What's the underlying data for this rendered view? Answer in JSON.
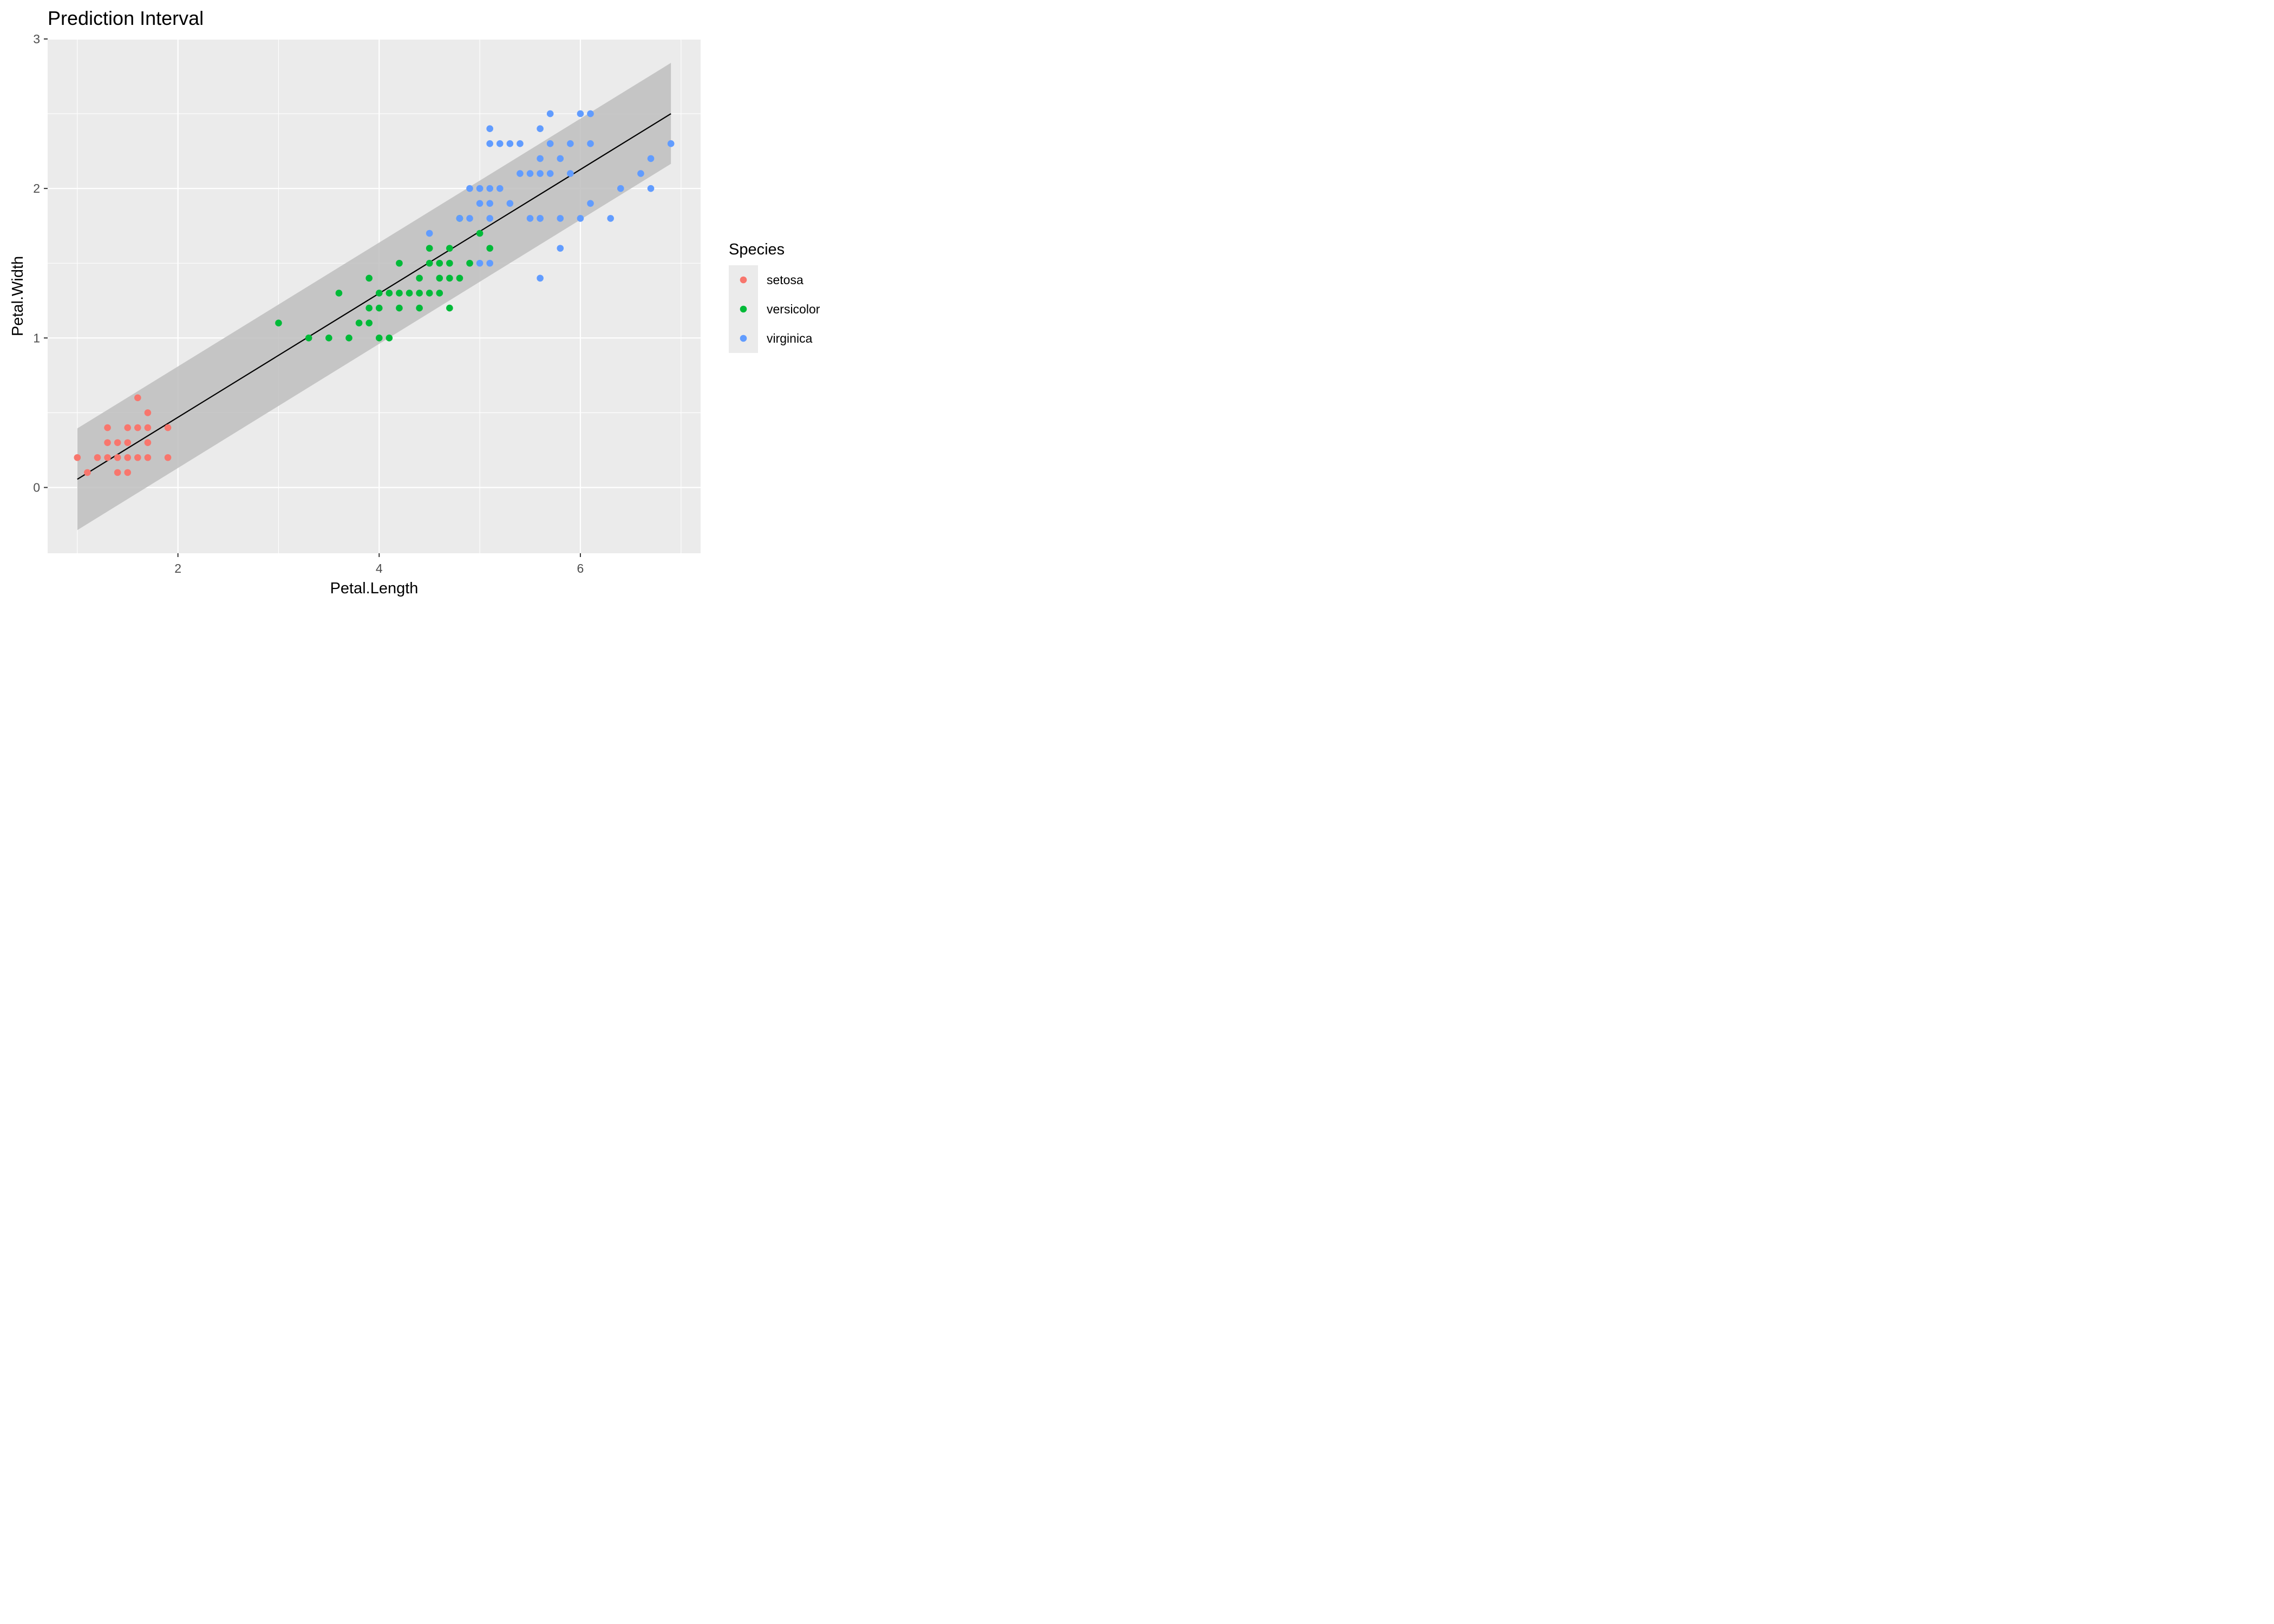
{
  "chart_data": {
    "type": "scatter",
    "title": "Prediction Interval",
    "xlabel": "Petal.Length",
    "ylabel": "Petal.Width",
    "xlim": [
      0.705,
      7.195
    ],
    "ylim": [
      -0.44,
      3.0
    ],
    "x_ticks": [
      2,
      4,
      6
    ],
    "y_ticks": [
      0,
      1,
      2,
      3
    ],
    "grid": true,
    "legend": {
      "title": "Species",
      "position": "right",
      "entries": [
        "setosa",
        "versicolor",
        "virginica"
      ]
    },
    "colors": {
      "setosa": "#F8766D",
      "versicolor": "#00BA38",
      "virginica": "#619CFF",
      "panel": "#EBEBEB",
      "grid": "#FFFFFF",
      "band": "#BEBEBE",
      "fit_line": "#000000"
    },
    "fit_line": {
      "name": "",
      "x": [
        1.0,
        6.9
      ],
      "y": [
        0.055,
        2.5
      ]
    },
    "prediction_interval": {
      "x": [
        1.0,
        6.9
      ],
      "lower": [
        -0.285,
        2.165
      ],
      "upper": [
        0.395,
        2.84
      ]
    },
    "series": [
      {
        "name": "setosa",
        "x": [
          1.0,
          1.1,
          1.2,
          1.3,
          1.3,
          1.3,
          1.4,
          1.4,
          1.4,
          1.5,
          1.5,
          1.5,
          1.5,
          1.6,
          1.6,
          1.6,
          1.7,
          1.7,
          1.7,
          1.7,
          1.9,
          1.9
        ],
        "y": [
          0.2,
          0.1,
          0.2,
          0.2,
          0.3,
          0.4,
          0.1,
          0.2,
          0.3,
          0.1,
          0.2,
          0.3,
          0.4,
          0.2,
          0.4,
          0.6,
          0.2,
          0.3,
          0.4,
          0.5,
          0.2,
          0.4
        ]
      },
      {
        "name": "versicolor",
        "x": [
          3.0,
          3.3,
          3.5,
          3.6,
          3.7,
          3.8,
          3.9,
          3.9,
          3.9,
          4.0,
          4.0,
          4.0,
          4.1,
          4.1,
          4.2,
          4.2,
          4.2,
          4.3,
          4.4,
          4.4,
          4.4,
          4.5,
          4.5,
          4.5,
          4.6,
          4.6,
          4.6,
          4.7,
          4.7,
          4.7,
          4.7,
          4.8,
          4.8,
          4.9,
          5.0,
          5.1
        ],
        "y": [
          1.1,
          1.0,
          1.0,
          1.3,
          1.0,
          1.1,
          1.1,
          1.2,
          1.4,
          1.0,
          1.2,
          1.3,
          1.0,
          1.3,
          1.2,
          1.3,
          1.5,
          1.3,
          1.2,
          1.3,
          1.4,
          1.3,
          1.5,
          1.6,
          1.3,
          1.4,
          1.5,
          1.2,
          1.4,
          1.5,
          1.6,
          1.4,
          1.8,
          1.5,
          1.7,
          1.6
        ]
      },
      {
        "name": "virginica",
        "x": [
          4.5,
          4.8,
          4.9,
          4.9,
          5.0,
          5.0,
          5.0,
          5.0,
          5.1,
          5.1,
          5.1,
          5.1,
          5.1,
          5.1,
          5.2,
          5.2,
          5.3,
          5.3,
          5.4,
          5.4,
          5.5,
          5.5,
          5.6,
          5.6,
          5.6,
          5.6,
          5.6,
          5.6,
          5.7,
          5.7,
          5.7,
          5.8,
          5.8,
          5.8,
          5.9,
          5.9,
          6.0,
          6.0,
          6.1,
          6.1,
          6.1,
          6.3,
          6.4,
          6.6,
          6.7,
          6.7,
          6.9
        ],
        "y": [
          1.7,
          1.8,
          1.8,
          2.0,
          1.5,
          1.9,
          2.0,
          2.0,
          1.5,
          1.8,
          1.9,
          2.0,
          2.3,
          2.4,
          2.0,
          2.3,
          1.9,
          2.3,
          2.1,
          2.3,
          1.8,
          2.1,
          1.4,
          1.8,
          2.1,
          2.2,
          2.4,
          1.8,
          2.1,
          2.3,
          2.5,
          1.6,
          1.8,
          2.2,
          2.1,
          2.3,
          1.8,
          2.5,
          1.9,
          2.3,
          2.5,
          1.8,
          2.0,
          2.1,
          2.0,
          2.2,
          2.3
        ]
      }
    ]
  }
}
